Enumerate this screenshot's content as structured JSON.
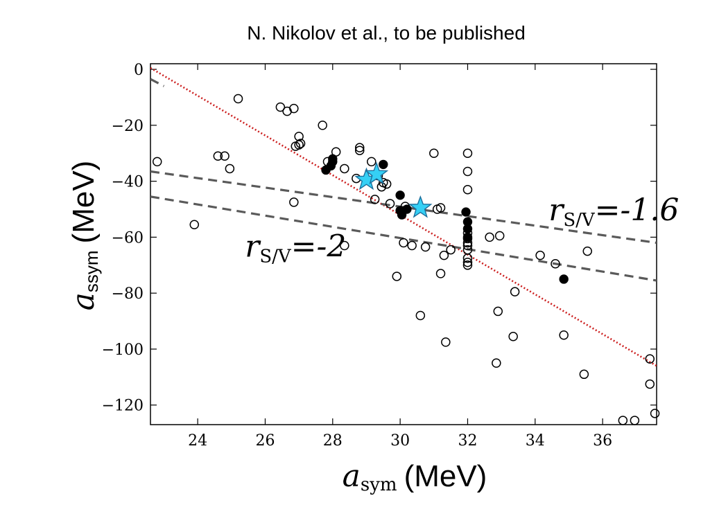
{
  "header": {
    "title": "N. Nikolov et al., to be published"
  },
  "chart_data": {
    "type": "scatter",
    "title": "",
    "xlabel": {
      "symbol": "a",
      "sub": "sym",
      "unit": "(MeV)"
    },
    "ylabel": {
      "symbol": "a",
      "sub": "ssym",
      "unit": "(MeV)"
    },
    "xlim": [
      22.6,
      37.6
    ],
    "ylim": [
      -127,
      2
    ],
    "xticks": [
      24,
      26,
      28,
      30,
      32,
      34,
      36
    ],
    "yticks": [
      0,
      -20,
      -40,
      -60,
      -80,
      -100,
      -120
    ],
    "xtick_labels": [
      "24",
      "26",
      "28",
      "30",
      "32",
      "34",
      "36"
    ],
    "ytick_labels": [
      "0",
      "−20",
      "−40",
      "−60",
      "−80",
      "−100",
      "−120"
    ],
    "grid": false,
    "colors": {
      "open": "#000000",
      "filled": "#000000",
      "star": "#35d0f5",
      "fit": "#cc1f1f",
      "dashed": "#5a5a5a"
    },
    "series": [
      {
        "marker": "open-circle",
        "points": [
          [
            22.8,
            -33
          ],
          [
            23.9,
            -55.5
          ],
          [
            24.6,
            -31
          ],
          [
            24.8,
            -31
          ],
          [
            24.95,
            -35.5
          ],
          [
            25.2,
            -10.5
          ],
          [
            26.45,
            -13.5
          ],
          [
            26.65,
            -15
          ],
          [
            26.85,
            -14
          ],
          [
            26.85,
            -47.5
          ],
          [
            26.9,
            -27.5
          ],
          [
            27.0,
            -24
          ],
          [
            27.0,
            -27
          ],
          [
            27.05,
            -26.5
          ],
          [
            27.7,
            -20
          ],
          [
            27.85,
            -33
          ],
          [
            28.1,
            -29.5
          ],
          [
            28.35,
            -35.5
          ],
          [
            28.35,
            -63
          ],
          [
            28.7,
            -39
          ],
          [
            28.8,
            -28
          ],
          [
            28.8,
            -29
          ],
          [
            29.15,
            -33
          ],
          [
            29.25,
            -46.5
          ],
          [
            29.35,
            -38
          ],
          [
            29.45,
            -42
          ],
          [
            29.5,
            -40.5
          ],
          [
            29.6,
            -41
          ],
          [
            29.7,
            -48
          ],
          [
            29.9,
            -74
          ],
          [
            30.1,
            -62
          ],
          [
            30.15,
            -49
          ],
          [
            30.35,
            -63
          ],
          [
            30.6,
            -88
          ],
          [
            30.75,
            -63.5
          ],
          [
            31.0,
            -30
          ],
          [
            31.1,
            -50
          ],
          [
            31.2,
            -49.5
          ],
          [
            31.2,
            -73
          ],
          [
            31.3,
            -66.5
          ],
          [
            31.35,
            -97.5
          ],
          [
            31.5,
            -64.5
          ],
          [
            32.0,
            -30
          ],
          [
            32.0,
            -36.5
          ],
          [
            32.0,
            -43
          ],
          [
            32.0,
            -58.5
          ],
          [
            32.0,
            -60.5
          ],
          [
            32.0,
            -62
          ],
          [
            32.0,
            -63
          ],
          [
            32.0,
            -64.5
          ],
          [
            32.0,
            -67.5
          ],
          [
            32.0,
            -69
          ],
          [
            32.0,
            -70
          ],
          [
            32.65,
            -60
          ],
          [
            32.85,
            -105
          ],
          [
            32.9,
            -86.5
          ],
          [
            32.95,
            -59.5
          ],
          [
            33.35,
            -95.5
          ],
          [
            33.4,
            -79.5
          ],
          [
            34.15,
            -66.5
          ],
          [
            34.6,
            -69.5
          ],
          [
            34.85,
            -95
          ],
          [
            35.45,
            -109
          ],
          [
            35.55,
            -65
          ],
          [
            36.6,
            -125.5
          ],
          [
            36.95,
            -125.5
          ],
          [
            37.4,
            -103.5
          ],
          [
            37.4,
            -112.5
          ],
          [
            37.55,
            -123
          ]
        ]
      },
      {
        "marker": "filled-circle",
        "points": [
          [
            27.8,
            -36
          ],
          [
            27.95,
            -34.5
          ],
          [
            28.0,
            -33
          ],
          [
            28.0,
            -32
          ],
          [
            29.5,
            -34
          ],
          [
            30.0,
            -45
          ],
          [
            30.0,
            -50.5
          ],
          [
            30.05,
            -52
          ],
          [
            30.2,
            -50
          ],
          [
            31.95,
            -51
          ],
          [
            32.0,
            -54.5
          ],
          [
            32.0,
            -57
          ],
          [
            32.0,
            -60
          ],
          [
            34.85,
            -75
          ]
        ]
      },
      {
        "marker": "star",
        "points": [
          [
            29.0,
            -39.5
          ],
          [
            29.3,
            -37.5
          ],
          [
            30.6,
            -49.5
          ]
        ]
      }
    ],
    "lines": [
      {
        "style": "dotted",
        "color": "#cc1f1f",
        "from": [
          22.6,
          0.5
        ],
        "to": [
          37.6,
          -106
        ]
      },
      {
        "style": "dashed",
        "color": "#5a5a5a",
        "from": [
          22.6,
          -36.5
        ],
        "to": [
          37.6,
          -62
        ]
      },
      {
        "style": "dashed",
        "color": "#5a5a5a",
        "from": [
          22.6,
          -45.5
        ],
        "to": [
          37.6,
          -75.5
        ]
      },
      {
        "style": "dashed",
        "color": "#5a5a5a",
        "from": [
          22.6,
          -3.5
        ],
        "to": [
          23.0,
          -6
        ]
      }
    ],
    "annotations": [
      {
        "prefix": "r",
        "sub": "S/V",
        "suffix": "=-1.6",
        "x": 34.4,
        "y": -54
      },
      {
        "prefix": "r",
        "sub": "S/V",
        "suffix": "=-2",
        "x": 25.4,
        "y": -67
      }
    ]
  }
}
